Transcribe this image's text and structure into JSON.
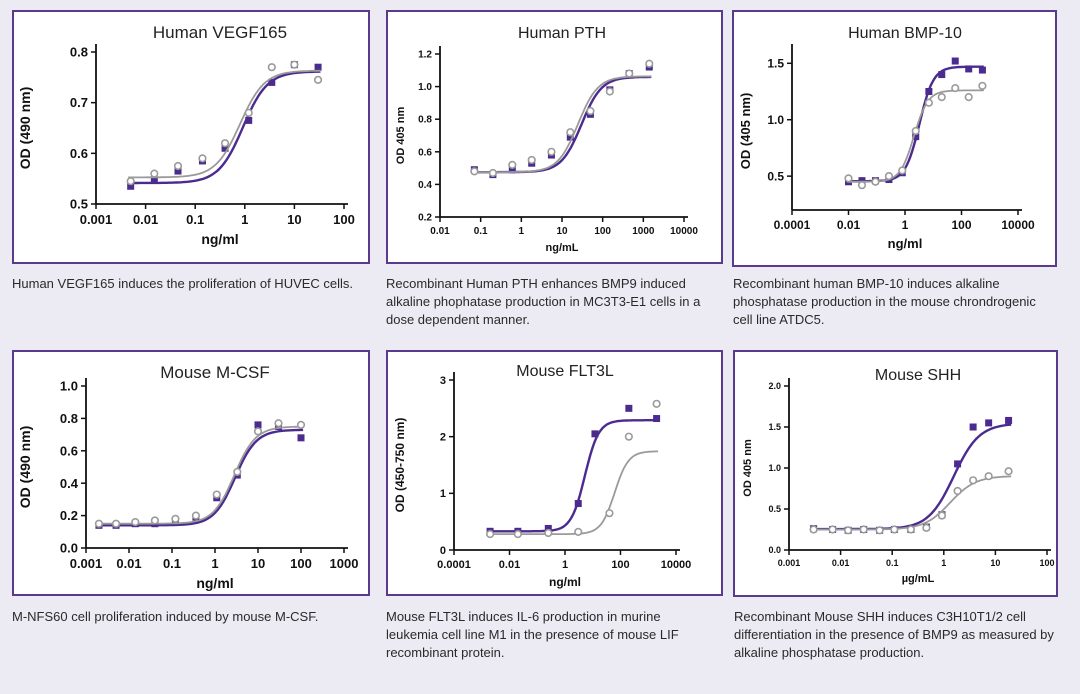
{
  "colors": {
    "purple": "#4b2b8f",
    "gray": "#9a9a9a",
    "border": "#5a3a8c"
  },
  "chart_data": [
    {
      "type": "scatter",
      "title": "Human VEGF165",
      "xlabel": "ng/ml",
      "ylabel": "OD (490 nm)",
      "x_scale": "log",
      "xlim": [
        0.001,
        100
      ],
      "ylim": [
        0.5,
        0.8
      ],
      "x_ticks": [
        "0.001",
        "0.01",
        "0.1",
        "1",
        "10",
        "100"
      ],
      "y_ticks": [
        "0.5",
        "0.6",
        "0.7",
        "0.8"
      ],
      "caption": "Human VEGF165 induces the proliferation of HUVEC cells.",
      "series": [
        {
          "color": "#4b2b8f",
          "marker": "square",
          "x": [
            0.005,
            0.015,
            0.045,
            0.14,
            0.4,
            1.2,
            3.5,
            10,
            30
          ],
          "y": [
            0.535,
            0.548,
            0.565,
            0.585,
            0.61,
            0.665,
            0.74,
            0.775,
            0.77
          ]
        },
        {
          "color": "#9a9a9a",
          "marker": "circle",
          "x": [
            0.005,
            0.015,
            0.045,
            0.14,
            0.4,
            1.2,
            3.5,
            10,
            30
          ],
          "y": [
            0.545,
            0.56,
            0.575,
            0.59,
            0.62,
            0.68,
            0.77,
            0.775,
            0.745
          ]
        }
      ]
    },
    {
      "type": "scatter",
      "title": "Human PTH",
      "xlabel": "ng/mL",
      "ylabel": "OD 405 nm",
      "x_scale": "log",
      "xlim": [
        0.01,
        10000
      ],
      "ylim": [
        0.2,
        1.2
      ],
      "x_ticks": [
        "0.01",
        "0.1",
        "1",
        "10",
        "100",
        "1000",
        "10000"
      ],
      "y_ticks": [
        "0.2",
        "0.4",
        "0.6",
        "0.8",
        "1.0",
        "1.2"
      ],
      "caption": "Recombinant Human PTH enhances BMP9 induced alkaline phophatase production in MC3T3-E1 cells in a dose dependent manner.",
      "series": [
        {
          "color": "#4b2b8f",
          "marker": "square",
          "x": [
            0.07,
            0.2,
            0.6,
            1.8,
            5.5,
            16,
            50,
            150,
            450,
            1400
          ],
          "y": [
            0.49,
            0.46,
            0.49,
            0.53,
            0.58,
            0.69,
            0.83,
            0.98,
            1.08,
            1.12
          ]
        },
        {
          "color": "#9a9a9a",
          "marker": "circle",
          "x": [
            0.07,
            0.2,
            0.6,
            1.8,
            5.5,
            16,
            50,
            150,
            450,
            1400
          ],
          "y": [
            0.48,
            0.47,
            0.52,
            0.55,
            0.6,
            0.72,
            0.85,
            0.97,
            1.08,
            1.14
          ]
        }
      ]
    },
    {
      "type": "scatter",
      "title": "Human BMP-10",
      "xlabel": "ng/ml",
      "ylabel": "OD (405 nm)",
      "x_scale": "log",
      "xlim": [
        0.0001,
        10000
      ],
      "ylim": [
        0.2,
        1.6
      ],
      "x_ticks": [
        "0.0001",
        "0.01",
        "1",
        "100",
        "10000"
      ],
      "y_ticks": [
        "0.5",
        "1.0",
        "1.5"
      ],
      "caption": "Recombinant human BMP-10 induces alkaline phosphatase production in the mouse chrondrogenic cell line ATDC5.",
      "series": [
        {
          "color": "#4b2b8f",
          "marker": "square",
          "x": [
            0.01,
            0.03,
            0.09,
            0.27,
            0.8,
            2.4,
            7,
            20,
            60,
            180,
            550
          ],
          "y": [
            0.45,
            0.46,
            0.46,
            0.47,
            0.53,
            0.85,
            1.25,
            1.4,
            1.52,
            1.45,
            1.44
          ]
        },
        {
          "color": "#9a9a9a",
          "marker": "circle",
          "x": [
            0.01,
            0.03,
            0.09,
            0.27,
            0.8,
            2.4,
            7,
            20,
            60,
            180,
            550
          ],
          "y": [
            0.48,
            0.42,
            0.45,
            0.5,
            0.55,
            0.9,
            1.15,
            1.2,
            1.28,
            1.2,
            1.3
          ]
        }
      ]
    },
    {
      "type": "scatter",
      "title": "Mouse M-CSF",
      "xlabel": "ng/ml",
      "ylabel": "OD (490 nm)",
      "x_scale": "log",
      "xlim": [
        0.001,
        1000
      ],
      "ylim": [
        0,
        1.0
      ],
      "x_ticks": [
        "0.001",
        "0.01",
        "0.1",
        "1",
        "10",
        "100",
        "1000"
      ],
      "y_ticks": [
        "0.0",
        "0.2",
        "0.4",
        "0.6",
        "0.8",
        "1.0"
      ],
      "caption": "M-NFS60 cell proliferation induced by mouse M-CSF.",
      "series": [
        {
          "color": "#4b2b8f",
          "marker": "square",
          "x": [
            0.002,
            0.005,
            0.014,
            0.04,
            0.12,
            0.36,
            1.1,
            3.3,
            10,
            30,
            100
          ],
          "y": [
            0.14,
            0.14,
            0.15,
            0.15,
            0.17,
            0.19,
            0.31,
            0.45,
            0.76,
            0.75,
            0.68
          ]
        },
        {
          "color": "#9a9a9a",
          "marker": "circle",
          "x": [
            0.002,
            0.005,
            0.014,
            0.04,
            0.12,
            0.36,
            1.1,
            3.3,
            10,
            30,
            100
          ],
          "y": [
            0.15,
            0.15,
            0.16,
            0.17,
            0.18,
            0.2,
            0.33,
            0.47,
            0.72,
            0.77,
            0.76
          ]
        }
      ]
    },
    {
      "type": "scatter",
      "title": "Mouse FLT3L",
      "xlabel": "ng/ml",
      "ylabel": "OD (450-750 nm)",
      "x_scale": "log",
      "xlim": [
        0.0001,
        10000
      ],
      "ylim": [
        0,
        3
      ],
      "x_ticks": [
        "0.0001",
        "0.01",
        "1",
        "100",
        "10000"
      ],
      "y_ticks": [
        "0",
        "1",
        "2",
        "3"
      ],
      "caption": "Mouse FLT3L induces IL-6 production in murine leukemia cell line M1 in the presence of mouse LIF recombinant protein.",
      "series": [
        {
          "color": "#4b2b8f",
          "marker": "square",
          "x": [
            0.002,
            0.02,
            0.25,
            3,
            12,
            200,
            2000
          ],
          "y": [
            0.33,
            0.33,
            0.38,
            0.82,
            2.05,
            2.5,
            2.32
          ]
        },
        {
          "color": "#9a9a9a",
          "marker": "circle",
          "x": [
            0.002,
            0.02,
            0.25,
            3,
            40,
            200,
            2000
          ],
          "y": [
            0.28,
            0.28,
            0.3,
            0.32,
            0.65,
            2.0,
            2.58
          ]
        }
      ]
    },
    {
      "type": "scatter",
      "title": "Mouse SHH",
      "xlabel": "µg/mL",
      "ylabel": "OD 405 nm",
      "x_scale": "log",
      "xlim": [
        0.001,
        100
      ],
      "ylim": [
        0,
        2.0
      ],
      "x_ticks": [
        "0.001",
        "0.01",
        "0.1",
        "1",
        "10",
        "100"
      ],
      "y_ticks": [
        "0.0",
        "0.5",
        "1.0",
        "1.5",
        "2.0"
      ],
      "caption": "Recombinant Mouse SHH induces C3H10T1/2 cell differentiation in the presence of BMP9 as measured by alkaline phosphatase production.",
      "series": [
        {
          "color": "#4b2b8f",
          "marker": "square",
          "x": [
            0.003,
            0.007,
            0.014,
            0.028,
            0.057,
            0.11,
            0.23,
            0.46,
            0.92,
            1.85,
            3.7,
            7.4,
            18
          ],
          "y": [
            0.26,
            0.25,
            0.24,
            0.25,
            0.24,
            0.25,
            0.25,
            0.28,
            0.43,
            1.05,
            1.5,
            1.55,
            1.58
          ]
        },
        {
          "color": "#9a9a9a",
          "marker": "circle",
          "x": [
            0.003,
            0.007,
            0.014,
            0.028,
            0.057,
            0.11,
            0.23,
            0.46,
            0.92,
            1.85,
            3.7,
            7.4,
            18
          ],
          "y": [
            0.25,
            0.25,
            0.24,
            0.25,
            0.24,
            0.25,
            0.25,
            0.27,
            0.42,
            0.72,
            0.85,
            0.9,
            0.96
          ]
        }
      ]
    }
  ]
}
